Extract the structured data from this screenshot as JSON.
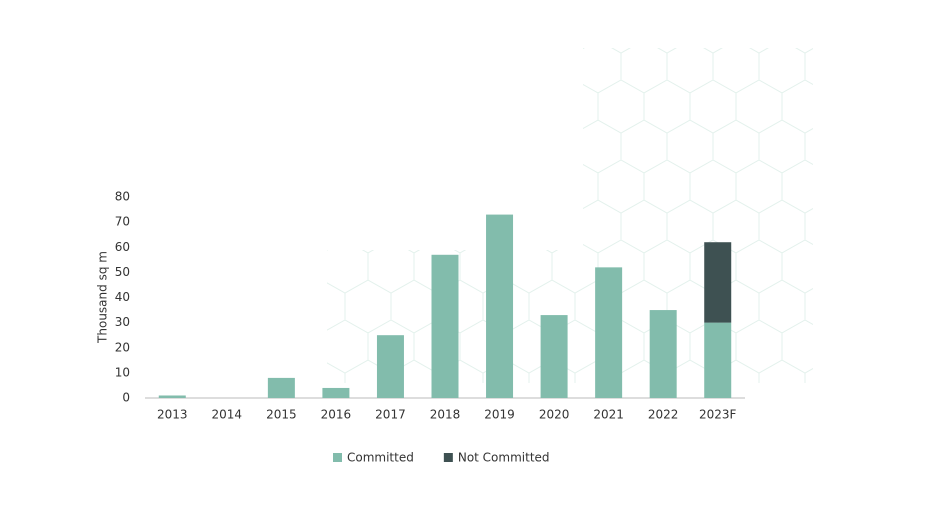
{
  "chart_data": {
    "type": "stacked_bar",
    "ylabel": "Thousand sq m",
    "categories": [
      "2013",
      "2014",
      "2015",
      "2016",
      "2017",
      "2018",
      "2019",
      "2020",
      "2021",
      "2022",
      "2023F"
    ],
    "series": [
      {
        "name": "Committed",
        "color": "#82bcac",
        "values": [
          1,
          0,
          8,
          4,
          25,
          57,
          73,
          33,
          52,
          35,
          30
        ]
      },
      {
        "name": "Not Committed",
        "color": "#3e5152",
        "values": [
          0,
          0,
          0,
          0,
          0,
          0,
          0,
          0,
          0,
          0,
          32
        ]
      }
    ],
    "ylim": [
      0,
      80
    ],
    "yticks": [
      0,
      10,
      20,
      30,
      40,
      50,
      60,
      70,
      80
    ],
    "grid": false,
    "legend": "bottom"
  }
}
